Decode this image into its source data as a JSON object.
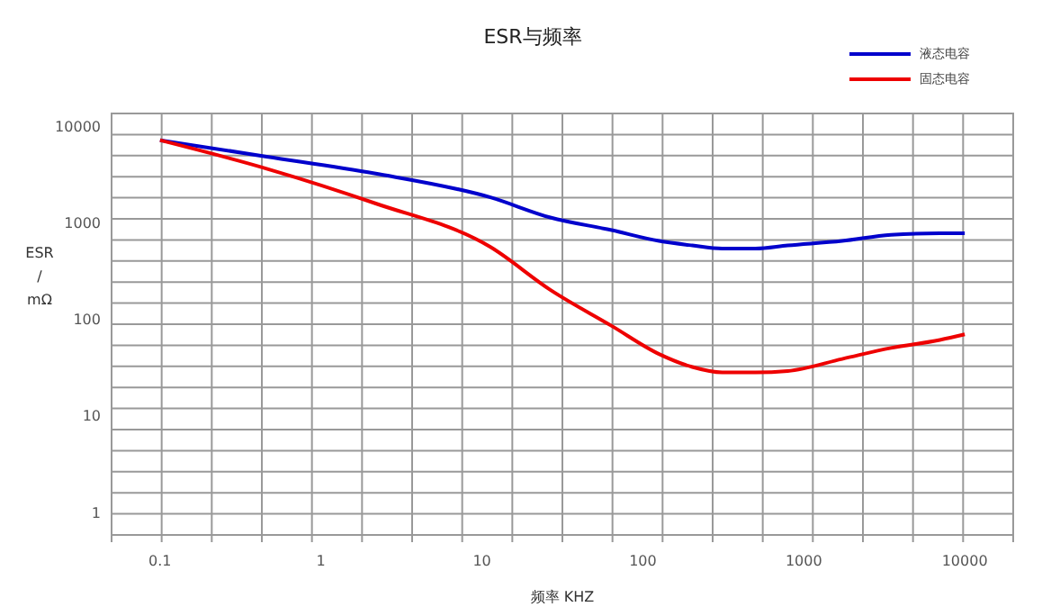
{
  "chart_data": {
    "type": "line",
    "title": "ESR与频率",
    "xlabel": "频率 KHZ",
    "ylabel": "ESR / mΩ",
    "log": "xy",
    "xlim": [
      0.05,
      20000
    ],
    "xticks": [
      0.1,
      1,
      10,
      100,
      1000,
      10000
    ],
    "ylim": [
      0.6,
      14000
    ],
    "yticks": [
      1,
      10,
      100,
      1000,
      10000
    ],
    "grid": true,
    "legend": "top right",
    "marker": "none",
    "line_style": "solid",
    "series": [
      {
        "name": "液态电容",
        "color": "#0000cc",
        "x": [
          0.1,
          0.46,
          2.15,
          11.3,
          26.6,
          64,
          126,
          203,
          311,
          501,
          794,
          1730,
          3480,
          7000,
          10000
        ],
        "values": [
          7400,
          5000,
          3350,
          1890,
          1170,
          865,
          668,
          600,
          557,
          557,
          600,
          668,
          774,
          803,
          803
        ]
      },
      {
        "name": "固态电容",
        "color": "#ee0000",
        "x": [
          0.1,
          0.46,
          2.15,
          11.3,
          26.6,
          64,
          126,
          203,
          311,
          501,
          794,
          1730,
          3480,
          7000,
          10000
        ],
        "values": [
          7400,
          3750,
          1650,
          578,
          208,
          88,
          45,
          33,
          29,
          29,
          30,
          40,
          52,
          63,
          72
        ]
      }
    ]
  }
}
